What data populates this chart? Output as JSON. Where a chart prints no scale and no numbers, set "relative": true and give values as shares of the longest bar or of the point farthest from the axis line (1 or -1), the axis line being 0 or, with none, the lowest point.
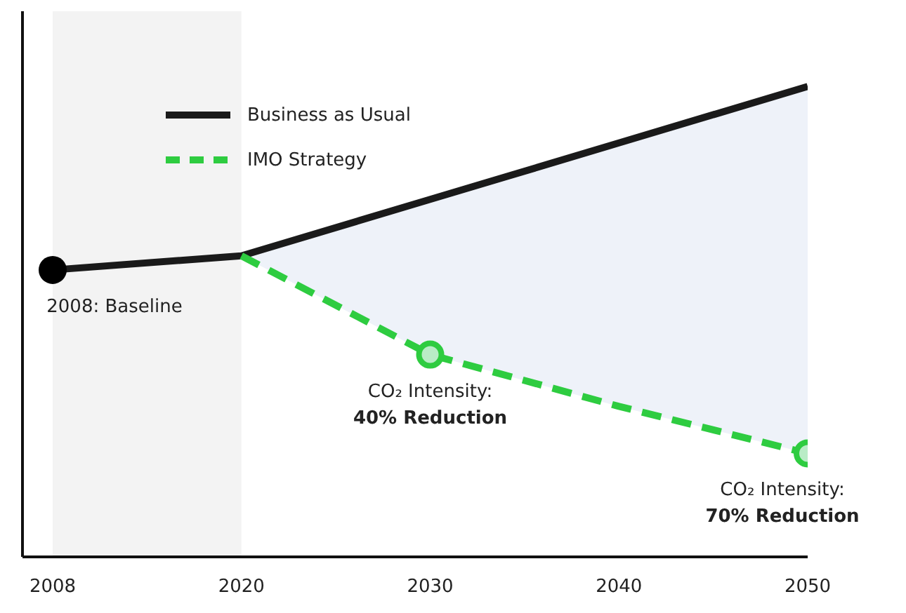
{
  "chart_data": {
    "type": "line",
    "relative": true,
    "categories": [
      "2008",
      "2020",
      "2030",
      "2040",
      "2050"
    ],
    "series": [
      {
        "name": "Business as Usual",
        "color": "#1a1a1a",
        "line_style": "solid",
        "marker": "none",
        "values": [
          0.61,
          0.64,
          0.76,
          0.88,
          1
        ]
      },
      {
        "name": "IMO Strategy",
        "color": "#2ecc40",
        "line_style": "dashed",
        "marker": "none",
        "values": [
          null,
          0.64,
          0.43,
          0.32,
          0.22
        ],
        "lower": [
          null,
          0.64,
          0.43,
          0.32,
          0.22
        ],
        "upper": [
          null,
          0.64,
          0.76,
          0.88,
          1
        ]
      },
      {
        "type": "scatter",
        "color": "#000000",
        "marker": "circle",
        "values": [
          0.61,
          null,
          null,
          null,
          null
        ]
      },
      {
        "type": "scatter",
        "color": "#2ecc40",
        "marker": "circle",
        "values": [
          null,
          null,
          0.43,
          null,
          0.22
        ]
      }
    ],
    "bands": [
      {
        "axis": "x",
        "from": "2008",
        "to": "2020",
        "color": "#f3f3f3"
      }
    ],
    "annotations": [
      {
        "text": "2008: Baseline",
        "x": "2008",
        "y": 0.61
      },
      {
        "text": "CO₂ Intensity:\n40% Reduction",
        "x": "2030",
        "y": 0.43
      },
      {
        "text": "CO₂ Intensity:\n70% Reduction",
        "x": "2050",
        "y": 0.22
      }
    ],
    "legend": "top left",
    "grid": false
  }
}
